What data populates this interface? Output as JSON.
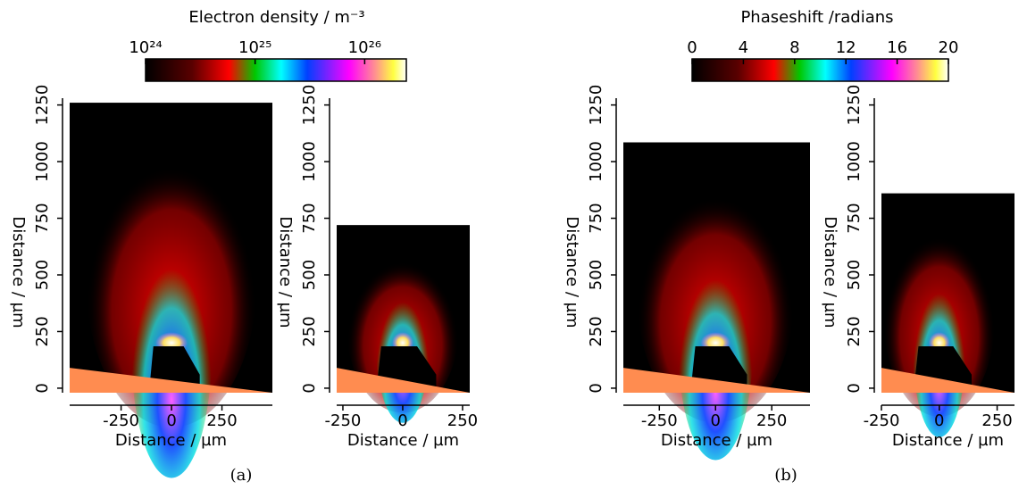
{
  "groups": [
    {
      "caption": "(a)",
      "colorbar": {
        "title": "Electron density / m⁻³",
        "scale": "log",
        "lim": [
          1e+24,
          2.4e+26
        ],
        "ticks": [
          {
            "value": 1e+24,
            "label": "10²⁴"
          },
          {
            "value": 1e+25,
            "label": "10²⁵"
          },
          {
            "value": 1e+26,
            "label": "10²⁶"
          }
        ]
      },
      "plots": [
        {
          "type": "heatmap",
          "x_label": "Distance / µm",
          "y_label": "Distance / µm",
          "xlim": [
            -505,
            500
          ],
          "ylim": [
            -20,
            1280
          ],
          "xticks": [
            -250,
            0,
            250
          ],
          "yticks": [
            0,
            250,
            500,
            750,
            1000,
            1250
          ],
          "extent": [
            -505,
            500,
            -20,
            1260
          ]
        },
        {
          "type": "heatmap",
          "x_label": "Distance / µm",
          "y_label": "Distance / µm",
          "xlim": [
            -276,
            280
          ],
          "ylim": [
            -20,
            1280
          ],
          "xticks": [
            -250,
            0,
            250
          ],
          "yticks": [
            0,
            250,
            500,
            750,
            1000,
            1250
          ],
          "extent": [
            -276,
            280,
            -20,
            720
          ]
        }
      ]
    },
    {
      "caption": "(b)",
      "colorbar": {
        "title": "Phaseshift /radians",
        "scale": "linear",
        "lim": [
          0,
          20
        ],
        "ticks": [
          0,
          4,
          8,
          12,
          16,
          20
        ]
      },
      "plots": [
        {
          "type": "heatmap",
          "x_label": "Distance / µm",
          "y_label": "Distance / µm",
          "xlim": [
            -410,
            420
          ],
          "ylim": [
            -20,
            1280
          ],
          "xticks": [
            -250,
            0,
            250
          ],
          "yticks": [
            0,
            250,
            500,
            750,
            1000,
            1250
          ],
          "extent": [
            -410,
            420,
            -20,
            1085
          ]
        },
        {
          "type": "heatmap",
          "x_label": "Distance / µm",
          "y_label": "Distance / µm",
          "xlim": [
            -250,
            325
          ],
          "ylim": [
            -20,
            1280
          ],
          "xticks": [
            -250,
            0,
            250
          ],
          "yticks": [
            0,
            250,
            500,
            750,
            1000,
            1250
          ],
          "extent": [
            -250,
            325,
            -20,
            860
          ]
        }
      ]
    }
  ]
}
